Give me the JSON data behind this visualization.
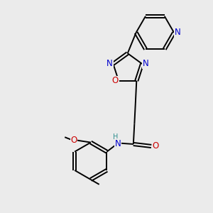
{
  "bg_color": "#ebebeb",
  "bond_color": "#000000",
  "N_color": "#0000cc",
  "O_color": "#cc0000",
  "NH_color": "#2f8f8f",
  "H_color": "#2f8f8f",
  "figsize": [
    3.0,
    3.0
  ],
  "dpi": 100,
  "lw": 1.4,
  "fs": 8.5,
  "xlim": [
    0,
    10
  ],
  "ylim": [
    0,
    10
  ]
}
